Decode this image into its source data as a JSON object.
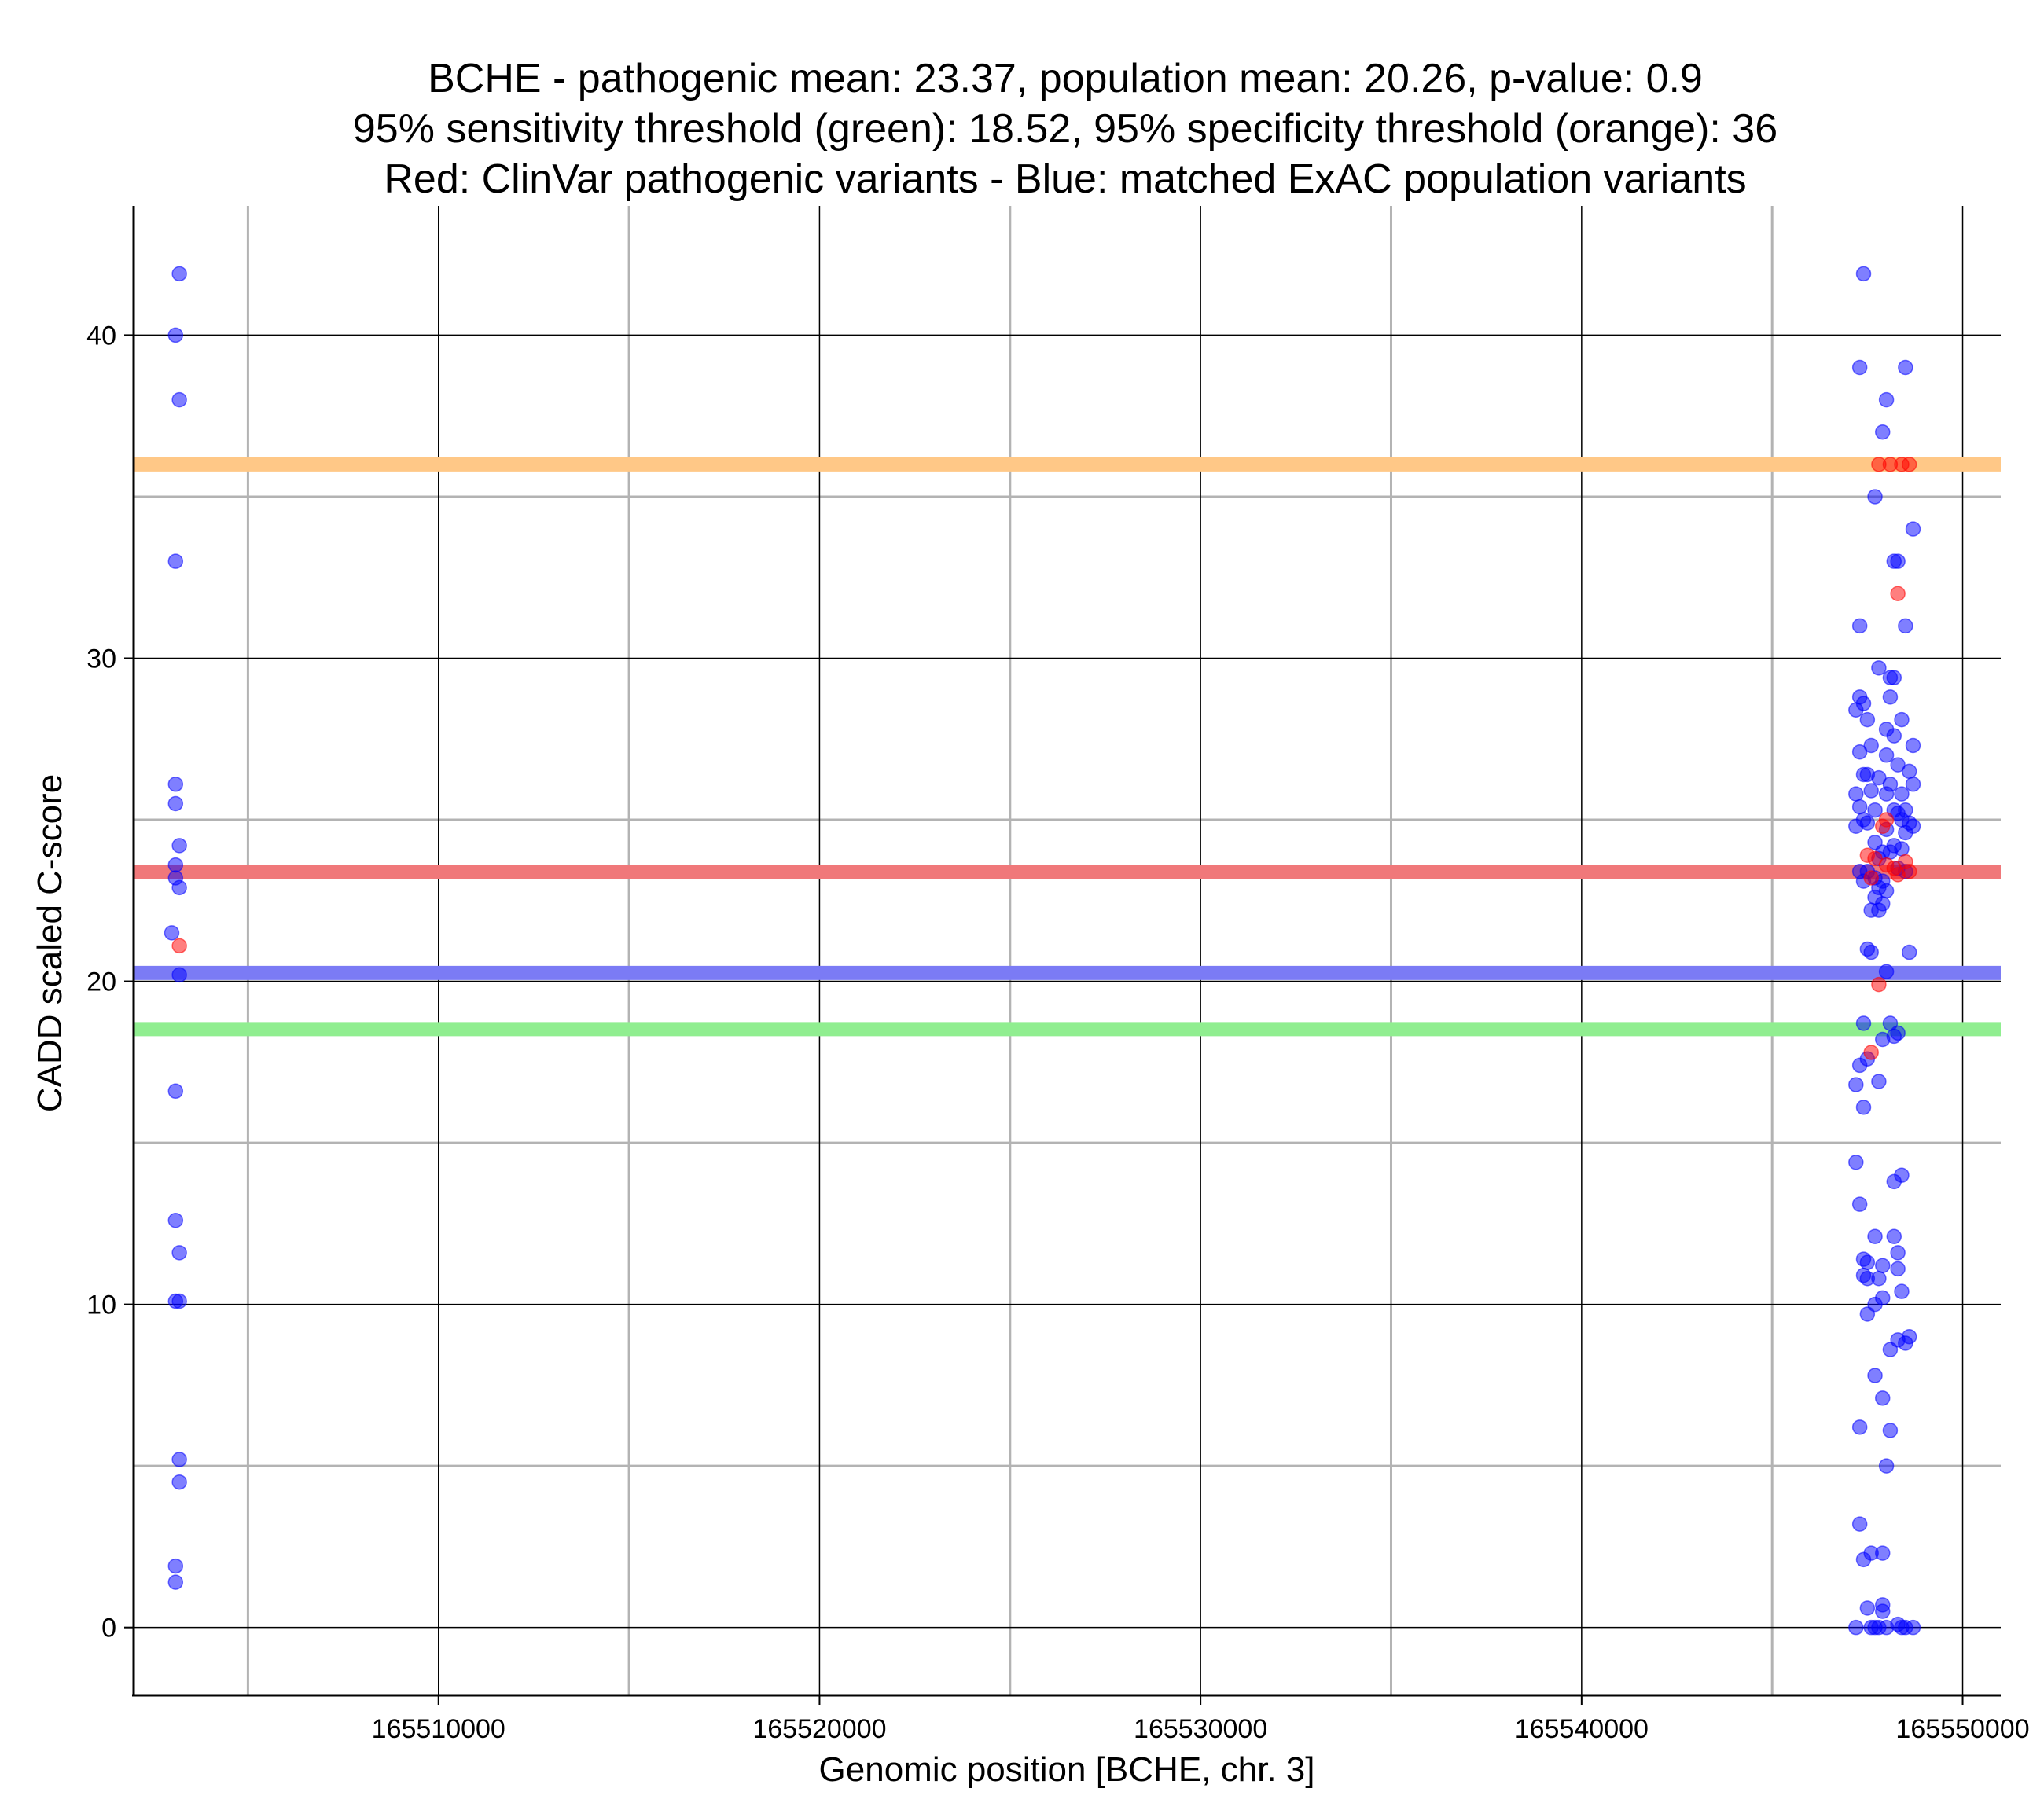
{
  "chart_data": {
    "type": "scatter",
    "title": [
      "BCHE - pathogenic mean: 23.37, population mean: 20.26, p-value: 0.9",
      "95% sensitivity threshold (green): 18.52, 95% specificity threshold (orange): 36",
      "Red: ClinVar pathogenic variants - Blue: matched ExAC population variants"
    ],
    "xlabel": "Genomic position [BCHE, chr. 3]",
    "ylabel": "CADD scaled C-score",
    "xlim": [
      165502000,
      165551000
    ],
    "ylim": [
      -2.1,
      44
    ],
    "x_ticks": [
      165510000,
      165520000,
      165530000,
      165540000,
      165550000
    ],
    "x_tick_labels": [
      "165510000",
      "165520000",
      "165530000",
      "165540000",
      "165550000"
    ],
    "x_minor_grid": [
      165505000,
      165515000,
      165525000,
      165535000,
      165545000
    ],
    "y_ticks": [
      0,
      10,
      20,
      30,
      40
    ],
    "y_tick_labels": [
      "0",
      "10",
      "20",
      "30",
      "40"
    ],
    "y_minor_grid": [
      5,
      15,
      25,
      35
    ],
    "grid": true,
    "colors": {
      "pathogenic": "#ff0000",
      "population": "#0000ff",
      "pathogenic_mean": "#f0787a",
      "population_mean": "#7b7bf5",
      "sensitivity_threshold": "#90ee90",
      "specificity_threshold": "#ffc887",
      "major_grid": "#000000",
      "minor_grid": "#b3b3b3"
    },
    "hlines": [
      {
        "name": "specificity threshold",
        "y": 36,
        "color": "#ffc887"
      },
      {
        "name": "pathogenic mean",
        "y": 23.37,
        "color": "#f0787a"
      },
      {
        "name": "population mean",
        "y": 20.26,
        "color": "#7b7bf5"
      },
      {
        "name": "sensitivity threshold",
        "y": 18.52,
        "color": "#90ee90"
      }
    ],
    "series": [
      {
        "name": "ClinVar pathogenic variants",
        "color": "#ff0000",
        "points": [
          [
            165503200,
            21.1
          ],
          [
            165547800,
            36.0
          ],
          [
            165548100,
            36.0
          ],
          [
            165548400,
            36.0
          ],
          [
            165548600,
            36.0
          ],
          [
            165548300,
            32.0
          ],
          [
            165548000,
            25.0
          ],
          [
            165547900,
            24.8
          ],
          [
            165547500,
            23.9
          ],
          [
            165547700,
            23.8
          ],
          [
            165548000,
            23.6
          ],
          [
            165548200,
            23.5
          ],
          [
            165548500,
            23.7
          ],
          [
            165548600,
            23.4
          ],
          [
            165547600,
            23.2
          ],
          [
            165548300,
            23.3
          ],
          [
            165547800,
            19.9
          ],
          [
            165547600,
            17.8
          ]
        ]
      },
      {
        "name": "matched ExAC population variants",
        "color": "#0000ff",
        "points": [
          [
            165503200,
            41.9
          ],
          [
            165503100,
            40.0
          ],
          [
            165503200,
            38.0
          ],
          [
            165503100,
            33.0
          ],
          [
            165503100,
            26.1
          ],
          [
            165503100,
            25.5
          ],
          [
            165503200,
            24.2
          ],
          [
            165503100,
            23.6
          ],
          [
            165503100,
            23.2
          ],
          [
            165503200,
            22.9
          ],
          [
            165503000,
            21.5
          ],
          [
            165503200,
            20.2
          ],
          [
            165503100,
            16.6
          ],
          [
            165503100,
            12.6
          ],
          [
            165503200,
            11.6
          ],
          [
            165503100,
            10.1
          ],
          [
            165503200,
            10.1
          ],
          [
            165503200,
            5.2
          ],
          [
            165503200,
            4.5
          ],
          [
            165503100,
            1.9
          ],
          [
            165503100,
            1.4
          ],
          [
            165547400,
            41.9
          ],
          [
            165547300,
            39.0
          ],
          [
            165548500,
            39.0
          ],
          [
            165548000,
            38.0
          ],
          [
            165547900,
            37.0
          ],
          [
            165547700,
            35.0
          ],
          [
            165548700,
            34.0
          ],
          [
            165548200,
            33.0
          ],
          [
            165548300,
            33.0
          ],
          [
            165547300,
            31.0
          ],
          [
            165548500,
            31.0
          ],
          [
            165547800,
            29.7
          ],
          [
            165548100,
            29.4
          ],
          [
            165548200,
            29.4
          ],
          [
            165547300,
            28.8
          ],
          [
            165547400,
            28.6
          ],
          [
            165547200,
            28.4
          ],
          [
            165548100,
            28.8
          ],
          [
            165547500,
            28.1
          ],
          [
            165548400,
            28.1
          ],
          [
            165548000,
            27.8
          ],
          [
            165548200,
            27.6
          ],
          [
            165547300,
            27.1
          ],
          [
            165547600,
            27.3
          ],
          [
            165548700,
            27.3
          ],
          [
            165548000,
            27.0
          ],
          [
            165548300,
            26.7
          ],
          [
            165548600,
            26.5
          ],
          [
            165547400,
            26.4
          ],
          [
            165547500,
            26.4
          ],
          [
            165547800,
            26.3
          ],
          [
            165548100,
            26.1
          ],
          [
            165548700,
            26.1
          ],
          [
            165547200,
            25.8
          ],
          [
            165547600,
            25.9
          ],
          [
            165548000,
            25.8
          ],
          [
            165548400,
            25.8
          ],
          [
            165547300,
            25.4
          ],
          [
            165547700,
            25.3
          ],
          [
            165548200,
            25.3
          ],
          [
            165548300,
            25.2
          ],
          [
            165548500,
            25.3
          ],
          [
            165547400,
            25.0
          ],
          [
            165548400,
            25.0
          ],
          [
            165548600,
            24.9
          ],
          [
            165547200,
            24.8
          ],
          [
            165547500,
            24.9
          ],
          [
            165548000,
            24.7
          ],
          [
            165548700,
            24.8
          ],
          [
            165548500,
            24.6
          ],
          [
            165547700,
            24.3
          ],
          [
            165548200,
            24.2
          ],
          [
            165548400,
            24.1
          ],
          [
            165547900,
            24.0
          ],
          [
            165548100,
            24.0
          ],
          [
            165547800,
            23.8
          ],
          [
            165547300,
            23.4
          ],
          [
            165547500,
            23.4
          ],
          [
            165548300,
            23.5
          ],
          [
            165548500,
            23.4
          ],
          [
            165547400,
            23.1
          ],
          [
            165547700,
            23.2
          ],
          [
            165547900,
            23.1
          ],
          [
            165547800,
            22.9
          ],
          [
            165548000,
            22.8
          ],
          [
            165547700,
            22.6
          ],
          [
            165547900,
            22.4
          ],
          [
            165547600,
            22.2
          ],
          [
            165547800,
            22.2
          ],
          [
            165547500,
            21.0
          ],
          [
            165547600,
            20.9
          ],
          [
            165548600,
            20.9
          ],
          [
            165548000,
            20.3
          ],
          [
            165547400,
            18.7
          ],
          [
            165548100,
            18.7
          ],
          [
            165547900,
            18.2
          ],
          [
            165548300,
            18.4
          ],
          [
            165548200,
            18.3
          ],
          [
            165547300,
            17.4
          ],
          [
            165547500,
            17.6
          ],
          [
            165547200,
            16.8
          ],
          [
            165547800,
            16.9
          ],
          [
            165547400,
            16.1
          ],
          [
            165547200,
            14.4
          ],
          [
            165548400,
            14.0
          ],
          [
            165548200,
            13.8
          ],
          [
            165547300,
            13.1
          ],
          [
            165547700,
            12.1
          ],
          [
            165548200,
            12.1
          ],
          [
            165548300,
            11.6
          ],
          [
            165547400,
            11.4
          ],
          [
            165547500,
            11.3
          ],
          [
            165547900,
            11.2
          ],
          [
            165548300,
            11.1
          ],
          [
            165547400,
            10.9
          ],
          [
            165547500,
            10.8
          ],
          [
            165547800,
            10.8
          ],
          [
            165548400,
            10.4
          ],
          [
            165547900,
            10.2
          ],
          [
            165547700,
            10.0
          ],
          [
            165547500,
            9.7
          ],
          [
            165548600,
            9.0
          ],
          [
            165548300,
            8.9
          ],
          [
            165548500,
            8.8
          ],
          [
            165548100,
            8.6
          ],
          [
            165547700,
            7.8
          ],
          [
            165547900,
            7.1
          ],
          [
            165547300,
            6.2
          ],
          [
            165548100,
            6.1
          ],
          [
            165548000,
            5.0
          ],
          [
            165547300,
            3.2
          ],
          [
            165547600,
            2.3
          ],
          [
            165547900,
            2.3
          ],
          [
            165547400,
            2.1
          ],
          [
            165547500,
            0.6
          ],
          [
            165547900,
            0.7
          ],
          [
            165547900,
            0.5
          ],
          [
            165547200,
            0.0
          ],
          [
            165547600,
            0.0
          ],
          [
            165547800,
            0.0
          ],
          [
            165548000,
            0.0
          ],
          [
            165548300,
            0.1
          ],
          [
            165548500,
            0.0
          ],
          [
            165548700,
            0.0
          ],
          [
            165547700,
            0.0
          ],
          [
            165548400,
            0.0
          ]
        ]
      }
    ]
  }
}
